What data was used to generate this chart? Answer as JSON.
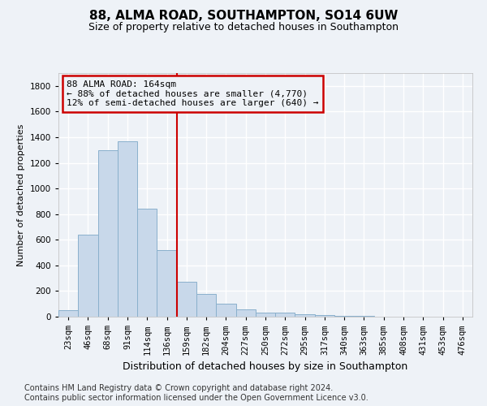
{
  "title1": "88, ALMA ROAD, SOUTHAMPTON, SO14 6UW",
  "title2": "Size of property relative to detached houses in Southampton",
  "xlabel": "Distribution of detached houses by size in Southampton",
  "ylabel": "Number of detached properties",
  "footnote": "Contains HM Land Registry data © Crown copyright and database right 2024.\nContains public sector information licensed under the Open Government Licence v3.0.",
  "categories": [
    "23sqm",
    "46sqm",
    "68sqm",
    "91sqm",
    "114sqm",
    "136sqm",
    "159sqm",
    "182sqm",
    "204sqm",
    "227sqm",
    "250sqm",
    "272sqm",
    "295sqm",
    "317sqm",
    "340sqm",
    "363sqm",
    "385sqm",
    "408sqm",
    "431sqm",
    "453sqm",
    "476sqm"
  ],
  "bar_values": [
    50,
    640,
    1300,
    1370,
    840,
    520,
    270,
    175,
    100,
    60,
    30,
    30,
    20,
    15,
    8,
    5,
    3,
    2,
    1,
    1,
    0
  ],
  "bar_color": "#c8d8ea",
  "bar_edge_color": "#8ab0cc",
  "highlight_label": "88 ALMA ROAD: 164sqm",
  "highlight_sub1": "← 88% of detached houses are smaller (4,770)",
  "highlight_sub2": "12% of semi-detached houses are larger (640) →",
  "annotation_box_color": "#cc0000",
  "vline_index": 6,
  "ylim": [
    0,
    1900
  ],
  "yticks": [
    0,
    200,
    400,
    600,
    800,
    1000,
    1200,
    1400,
    1600,
    1800
  ],
  "background_color": "#eef2f7",
  "grid_color": "#ffffff",
  "title1_fontsize": 11,
  "title2_fontsize": 9,
  "ylabel_fontsize": 8,
  "xlabel_fontsize": 9,
  "tick_fontsize": 7.5,
  "annotation_fontsize": 8,
  "footnote_fontsize": 7
}
